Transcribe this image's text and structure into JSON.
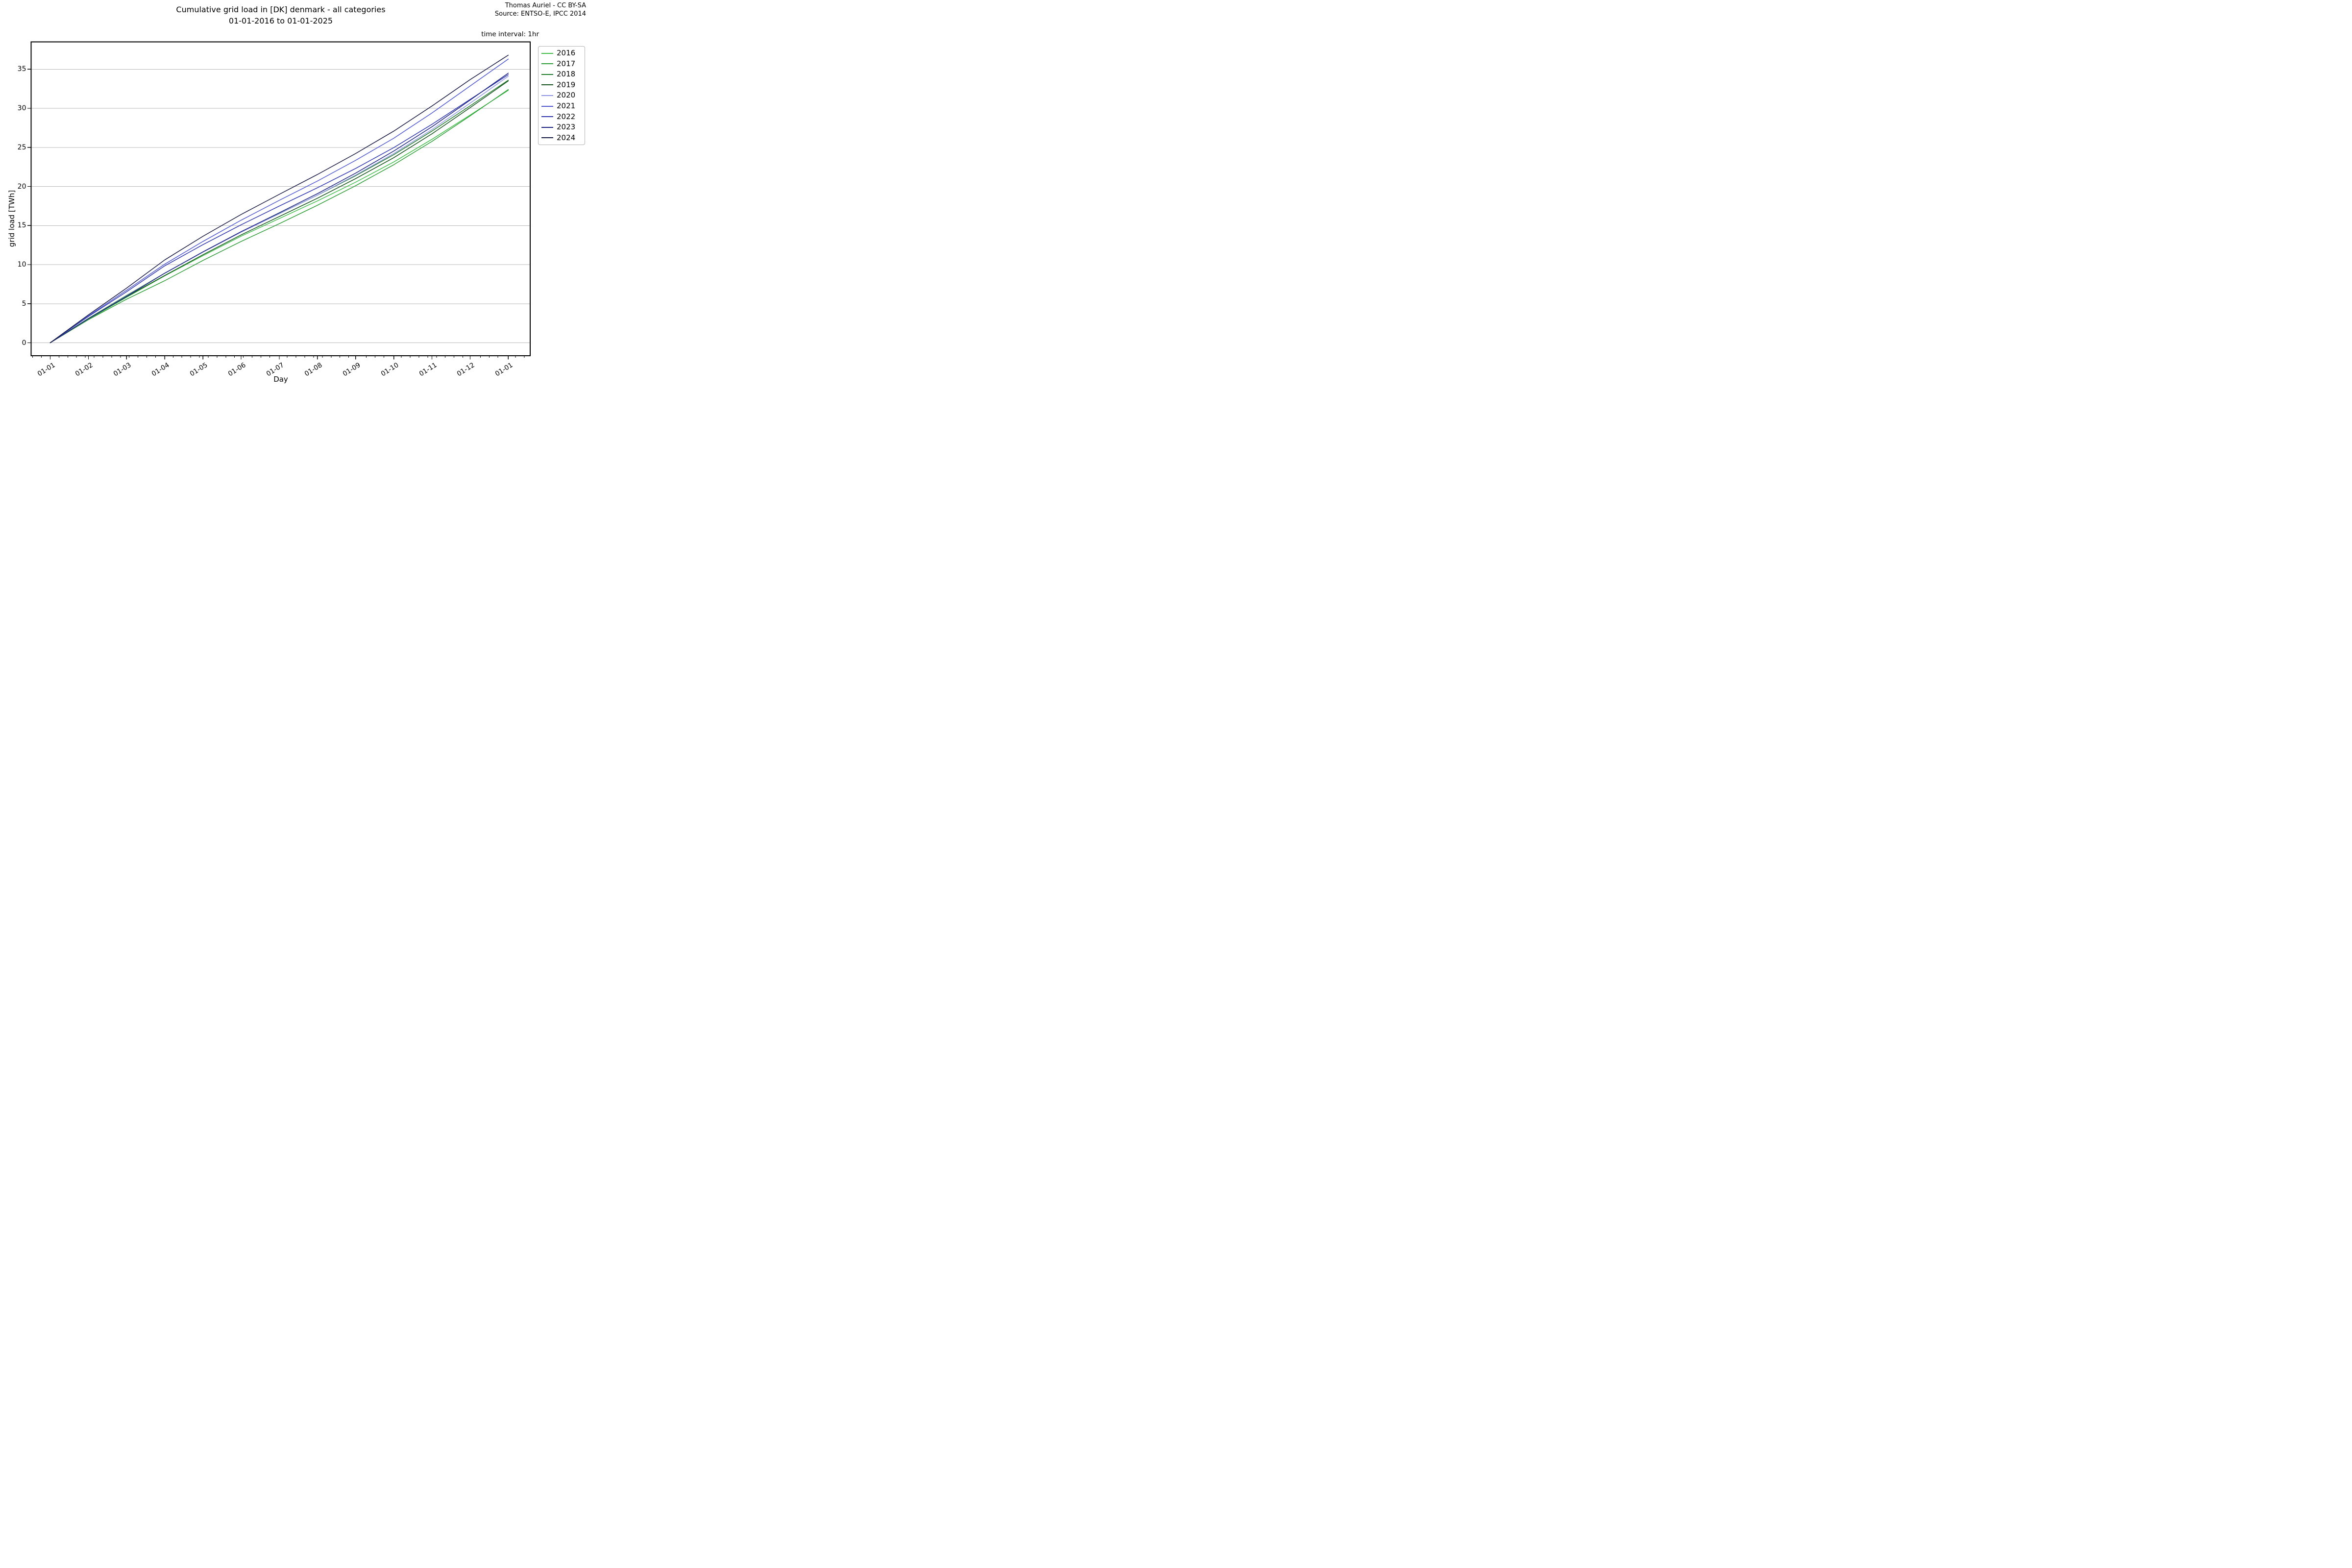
{
  "header": {
    "title_line1": "Cumulative grid load in [DK] denmark - all categories",
    "title_line2": "01-01-2016 to 01-01-2025",
    "credit_line1": "Thomas Auriel - CC BY-SA",
    "credit_line2": "Source: ENTSO-E, IPCC 2014",
    "time_interval": "time interval: 1hr"
  },
  "chart_data": {
    "type": "line",
    "title": "Cumulative grid load in [DK] denmark - all categories 01-01-2016 to 01-01-2025",
    "xlabel": "Day",
    "ylabel": "grid load [TWh]",
    "x_tick_labels": [
      "01-01",
      "01-02",
      "01-03",
      "01-04",
      "01-05",
      "01-06",
      "01-07",
      "01-08",
      "01-09",
      "01-10",
      "01-11",
      "01-12",
      "01-01"
    ],
    "y_ticks": [
      0,
      5,
      10,
      15,
      20,
      25,
      30,
      35
    ],
    "ylim": [
      -1.7,
      38.6
    ],
    "grid": "horizontal-only",
    "legend_position": "outside-right",
    "note": "cumulative hourly grid load per calendar year, sampled at month starts, TWh",
    "series": [
      {
        "name": "2016",
        "color": "#41bf4a",
        "final_total_twh": 32.3,
        "values": [
          0,
          3.0,
          5.81,
          8.56,
          11.14,
          13.63,
          15.89,
          18.15,
          20.54,
          23.13,
          26.03,
          29.13,
          32.3
        ]
      },
      {
        "name": "2017",
        "color": "#2f9e38",
        "final_total_twh": 32.4,
        "values": [
          0,
          2.95,
          5.57,
          7.94,
          10.53,
          12.96,
          15.23,
          17.59,
          20.09,
          22.78,
          25.76,
          29.03,
          32.4
        ]
      },
      {
        "name": "2018",
        "color": "#1f7c29",
        "final_total_twh": 33.6,
        "values": [
          0,
          3.12,
          6.05,
          8.9,
          11.59,
          14.18,
          16.53,
          18.88,
          21.37,
          24.06,
          27.08,
          30.31,
          33.6
        ]
      },
      {
        "name": "2019",
        "color": "#15521c",
        "final_total_twh": 33.5,
        "values": [
          0,
          3.07,
          5.9,
          8.61,
          11.26,
          13.8,
          16.15,
          18.49,
          21.0,
          23.68,
          26.73,
          30.08,
          33.5
        ]
      },
      {
        "name": "2020",
        "color": "#8f96e3",
        "final_total_twh": 34.1,
        "values": [
          0,
          3.07,
          5.97,
          8.9,
          11.59,
          14.15,
          16.5,
          18.89,
          21.45,
          24.21,
          27.28,
          30.66,
          34.1
        ]
      },
      {
        "name": "2021",
        "color": "#4e57ce",
        "final_total_twh": 36.3,
        "values": [
          0,
          3.45,
          6.72,
          10.06,
          12.96,
          15.68,
          18.22,
          20.69,
          23.34,
          26.17,
          29.4,
          32.85,
          36.3
        ]
      },
      {
        "name": "2022",
        "color": "#2f37ae",
        "final_total_twh": 34.3,
        "values": [
          0,
          3.36,
          6.52,
          9.84,
          12.55,
          15.09,
          17.49,
          19.83,
          22.3,
          24.97,
          27.95,
          31.14,
          34.3
        ]
      },
      {
        "name": "2023",
        "color": "#1b2180",
        "final_total_twh": 34.5,
        "values": [
          0,
          3.07,
          5.93,
          8.9,
          11.63,
          14.21,
          16.63,
          19.08,
          21.7,
          24.53,
          27.63,
          31.05,
          34.5
        ]
      },
      {
        "name": "2024",
        "color": "#161843",
        "final_total_twh": 36.8,
        "values": [
          0,
          3.57,
          6.99,
          10.6,
          13.62,
          16.41,
          18.99,
          21.53,
          24.21,
          27.08,
          30.29,
          33.67,
          36.8
        ]
      }
    ],
    "colors": {
      "background": "#ffffff",
      "gridline": "#b9b9b9",
      "spine": "#000000",
      "text": "#000000",
      "legend_border": "#b2b2b2"
    }
  }
}
